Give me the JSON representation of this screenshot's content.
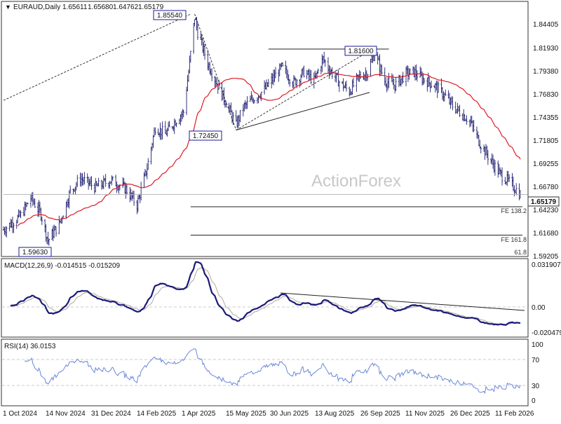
{
  "header": {
    "symbol": "EURAUD,Daily",
    "open": "1.65611",
    "high": "1.65680",
    "low": "1.64762",
    "close": "1.65179"
  },
  "watermark": "ActionForex",
  "colors": {
    "bar": "#1e1e6e",
    "ma": "#e01b24",
    "macd_main": "#1a1a7a",
    "macd_signal": "#b0a8a0",
    "rsi": "#6a88d8",
    "level_line": "#222222",
    "label_border": "#1a1a9a"
  },
  "price_axis": {
    "ticks": [
      "1.84405",
      "1.81930",
      "1.79380",
      "1.76830",
      "1.74355",
      "1.71805",
      "1.69255",
      "1.66780",
      "1.64230",
      "1.61680",
      "1.59205"
    ],
    "current_label": "1.65179"
  },
  "x_axis": {
    "ticks": [
      "1 Oct 2024",
      "14 Nov 2024",
      "31 Dec 2024",
      "14 Feb 2025",
      "1 Apr 2025",
      "15 May 2025",
      "30 Jun 2025",
      "13 Aug 2025",
      "26 Sep 2025",
      "11 Nov 2025",
      "26 Dec 2025",
      "11 Feb 2026"
    ]
  },
  "annotations": {
    "high_label": "1.85540",
    "mid_high_label": "1.81600",
    "low_label": "1.72450",
    "start_low_label": "1.59630",
    "fe138": "FE 138.2",
    "fe161": "FE 161.8",
    "fib618": "61.8"
  },
  "macd": {
    "title": "MACD(12,26,9) -0.014515 -0.015209",
    "ticks": [
      "0.031907",
      "0.00",
      "-0.020479"
    ]
  },
  "rsi": {
    "title": "RSI(14) 36.0153",
    "ticks": [
      "100",
      "70",
      "30",
      "0"
    ]
  },
  "chart_data": {
    "type": "candlestick",
    "symbol": "EURAUD",
    "timeframe": "Daily",
    "x_range": [
      "2024-10-01",
      "2026-02-24"
    ],
    "y_range": [
      1.585,
      1.865
    ],
    "key_levels": {
      "high": 1.8554,
      "mid_high": 1.816,
      "low": 1.7245,
      "start_low": 1.5963,
      "fe_138_2": 1.638,
      "fe_161_8": 1.606
    },
    "close_path": [
      {
        "date": "2024-10-01",
        "close": 1.612
      },
      {
        "date": "2024-10-18",
        "close": 1.628
      },
      {
        "date": "2024-10-28",
        "close": 1.648
      },
      {
        "date": "2024-11-07",
        "close": 1.63
      },
      {
        "date": "2024-11-14",
        "close": 1.6
      },
      {
        "date": "2024-11-25",
        "close": 1.618
      },
      {
        "date": "2024-12-06",
        "close": 1.655
      },
      {
        "date": "2024-12-16",
        "close": 1.67
      },
      {
        "date": "2024-12-31",
        "close": 1.66
      },
      {
        "date": "2025-01-15",
        "close": 1.668
      },
      {
        "date": "2025-01-30",
        "close": 1.658
      },
      {
        "date": "2025-02-10",
        "close": 1.64
      },
      {
        "date": "2025-02-20",
        "close": 1.682
      },
      {
        "date": "2025-02-28",
        "close": 1.728
      },
      {
        "date": "2025-03-10",
        "close": 1.72
      },
      {
        "date": "2025-03-20",
        "close": 1.735
      },
      {
        "date": "2025-03-28",
        "close": 1.745
      },
      {
        "date": "2025-04-02",
        "close": 1.79
      },
      {
        "date": "2025-04-08",
        "close": 1.852
      },
      {
        "date": "2025-04-11",
        "close": 1.835
      },
      {
        "date": "2025-04-21",
        "close": 1.8
      },
      {
        "date": "2025-05-01",
        "close": 1.775
      },
      {
        "date": "2025-05-12",
        "close": 1.748
      },
      {
        "date": "2025-05-19",
        "close": 1.73
      },
      {
        "date": "2025-05-26",
        "close": 1.75
      },
      {
        "date": "2025-06-05",
        "close": 1.76
      },
      {
        "date": "2025-06-16",
        "close": 1.77
      },
      {
        "date": "2025-06-26",
        "close": 1.785
      },
      {
        "date": "2025-07-03",
        "close": 1.795
      },
      {
        "date": "2025-07-15",
        "close": 1.778
      },
      {
        "date": "2025-07-25",
        "close": 1.79
      },
      {
        "date": "2025-08-04",
        "close": 1.78
      },
      {
        "date": "2025-08-13",
        "close": 1.805
      },
      {
        "date": "2025-08-18",
        "close": 1.795
      },
      {
        "date": "2025-08-28",
        "close": 1.78
      },
      {
        "date": "2025-09-08",
        "close": 1.768
      },
      {
        "date": "2025-09-18",
        "close": 1.785
      },
      {
        "date": "2025-09-26",
        "close": 1.79
      },
      {
        "date": "2025-10-03",
        "close": 1.812
      },
      {
        "date": "2025-10-13",
        "close": 1.78
      },
      {
        "date": "2025-10-23",
        "close": 1.775
      },
      {
        "date": "2025-11-03",
        "close": 1.788
      },
      {
        "date": "2025-11-11",
        "close": 1.79
      },
      {
        "date": "2025-11-20",
        "close": 1.782
      },
      {
        "date": "2025-12-01",
        "close": 1.775
      },
      {
        "date": "2025-12-10",
        "close": 1.765
      },
      {
        "date": "2025-12-19",
        "close": 1.752
      },
      {
        "date": "2025-12-26",
        "close": 1.745
      },
      {
        "date": "2026-01-05",
        "close": 1.735
      },
      {
        "date": "2026-01-15",
        "close": 1.71
      },
      {
        "date": "2026-01-26",
        "close": 1.69
      },
      {
        "date": "2026-02-04",
        "close": 1.675
      },
      {
        "date": "2026-02-11",
        "close": 1.668
      },
      {
        "date": "2026-02-18",
        "close": 1.66
      },
      {
        "date": "2026-02-24",
        "close": 1.6518
      }
    ],
    "indicators": {
      "macd_params": "12,26,9",
      "macd_value": -0.014515,
      "macd_signal": -0.015209,
      "rsi_period": 14,
      "rsi_value": 36.0153
    }
  }
}
